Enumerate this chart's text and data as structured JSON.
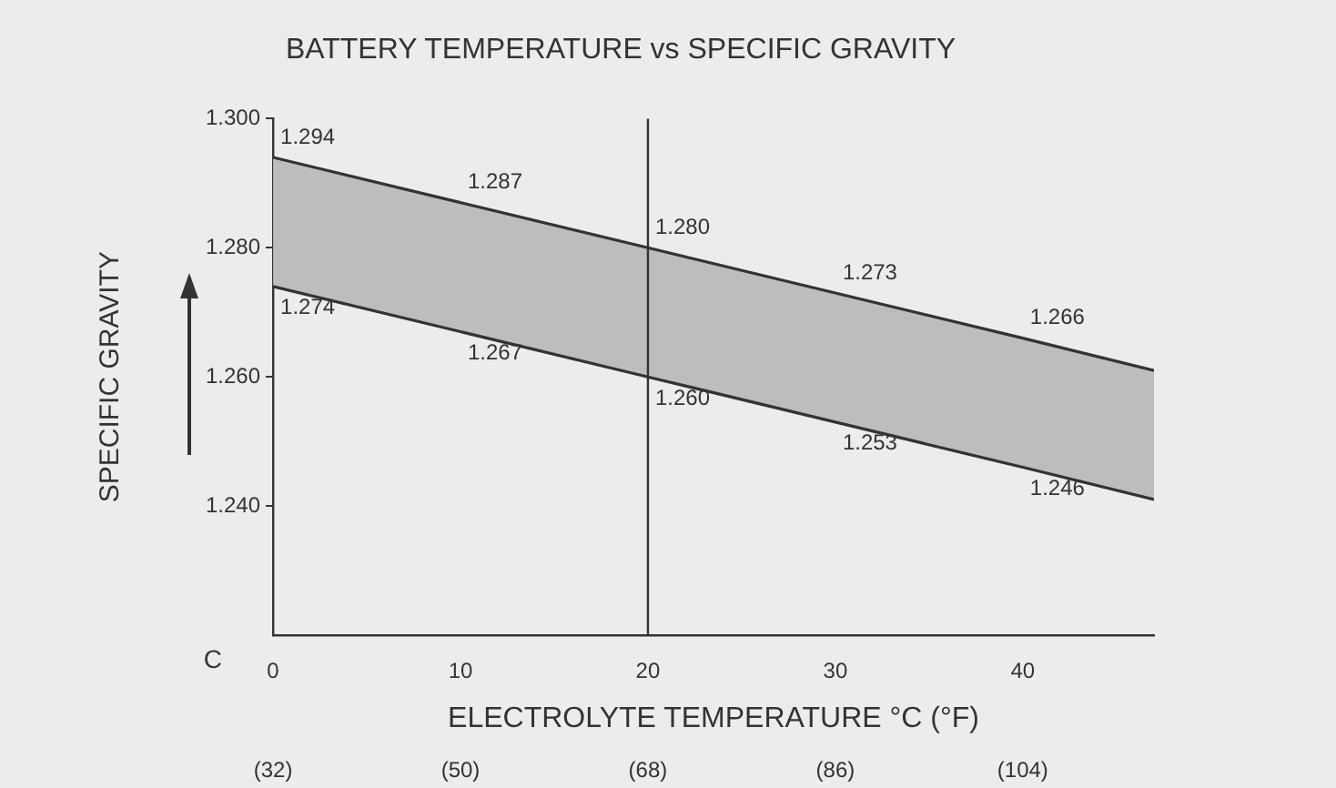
{
  "chart_data": {
    "type": "line",
    "title": "BATTERY TEMPERATURE vs SPECIFIC GRAVITY",
    "xlabel": "ELECTROLYTE TEMPERATURE °C (°F)",
    "ylabel": "SPECIFIC GRAVITY",
    "annotations": [
      "C"
    ],
    "x": [
      0,
      10,
      20,
      30,
      40,
      47
    ],
    "series": [
      {
        "color": "#333333",
        "values": [
          1.294,
          1.287,
          1.28,
          1.273,
          1.266,
          1.261
        ],
        "lower": [
          1.274,
          1.267,
          1.26,
          1.253,
          1.246,
          1.241
        ],
        "upper": [
          1.294,
          1.287,
          1.28,
          1.273,
          1.266,
          1.261
        ],
        "value_labels": [
          "1.294",
          "1.287",
          "1.280",
          "1.273",
          "1.266",
          null
        ]
      },
      {
        "color": "#333333",
        "values": [
          1.274,
          1.267,
          1.26,
          1.253,
          1.246,
          1.241
        ],
        "value_labels": [
          "1.274",
          "1.267",
          "1.260",
          "1.253",
          "1.246",
          null
        ]
      }
    ],
    "xlim": [
      0,
      47
    ],
    "xticks": [
      0,
      10,
      20,
      30,
      40
    ],
    "x2lim": [
      32,
      116.6
    ],
    "x2ticks": [
      {
        "value": 32,
        "label": "(32)"
      },
      {
        "value": 50,
        "label": "(50)"
      },
      {
        "value": 68,
        "label": "(68)"
      },
      {
        "value": 86,
        "label": "(86)"
      },
      {
        "value": 104,
        "label": "(104)"
      }
    ],
    "ylim": [
      1.22,
      1.3
    ],
    "yticks": [
      {
        "value": 1.24,
        "label": "1.240"
      },
      {
        "value": 1.26,
        "label": "1.260"
      },
      {
        "value": 1.28,
        "label": "1.280"
      },
      {
        "value": 1.3,
        "label": "1.300"
      }
    ],
    "ref_lines": [
      {
        "axis": "x",
        "value": 20,
        "color": "#333333"
      }
    ],
    "grid": false,
    "legend": false,
    "marker": "none",
    "line_style": "solid"
  }
}
